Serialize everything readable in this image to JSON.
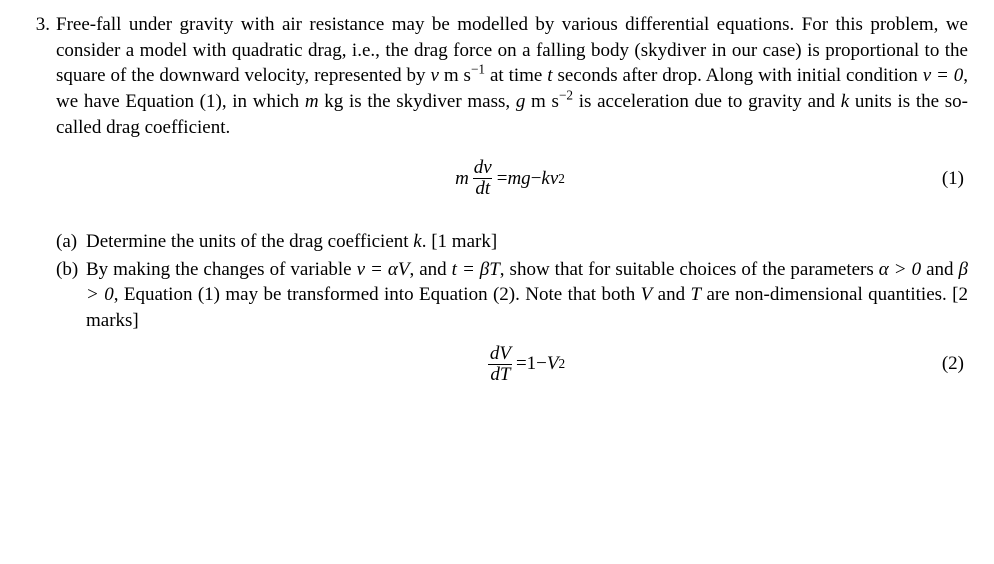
{
  "problem": {
    "number": "3.",
    "intro_parts": {
      "p1": "Free-fall under gravity with air resistance may be modelled by various differential equations. For this problem, we consider a model with quadratic drag, i.e., the drag force on a falling body (skydiver in our case) is proportional to the square of the downward velocity, represented by ",
      "v": "v",
      "unit1a": " m s",
      "unit1exp": "−1",
      "p2": " at time ",
      "t": "t",
      "p3": " seconds after drop. Along with initial condition ",
      "ic": "v = 0",
      "p4": ", we have Equation (1), in which ",
      "m": "m",
      "p5": "  kg is the skydiver mass, ",
      "g": "g",
      "unit2a": " m s",
      "unit2exp": "−2",
      "p6": " is acceleration due to gravity and ",
      "k": "k",
      "p7": " units is the so-called drag coefficient."
    },
    "eq1": {
      "lhs_m": "m",
      "frac_num": "dv",
      "frac_den": "dt",
      "eq": " = ",
      "rhs1": "mg",
      "minus": " − ",
      "rhs2": "kv",
      "sq": "2",
      "label": "(1)"
    },
    "parts": {
      "a": {
        "label": "(a)",
        "t1": "Determine the units of the drag coefficient ",
        "k": "k",
        "t2": ". [1 mark]"
      },
      "b": {
        "label": "(b)",
        "t1": "By making the changes of variable ",
        "cv1": "v = αV",
        "t2": ", and ",
        "cv2": "t = βT",
        "t3": ", show that for suitable choices of the parameters ",
        "a_gt": "α > 0",
        "t4": " and ",
        "b_gt": "β > 0",
        "t5": ", Equation (1) may be transformed into Equation (2). Note that both ",
        "V": "V",
        "t6": " and ",
        "T": "T",
        "t7": " are non-dimensional quantities. [2 marks]"
      }
    },
    "eq2": {
      "frac_num": "dV",
      "frac_den": "dT",
      "eq": " = ",
      "one": "1",
      "minus": " − ",
      "V": "V",
      "sq": "2",
      "label": "(2)"
    }
  }
}
